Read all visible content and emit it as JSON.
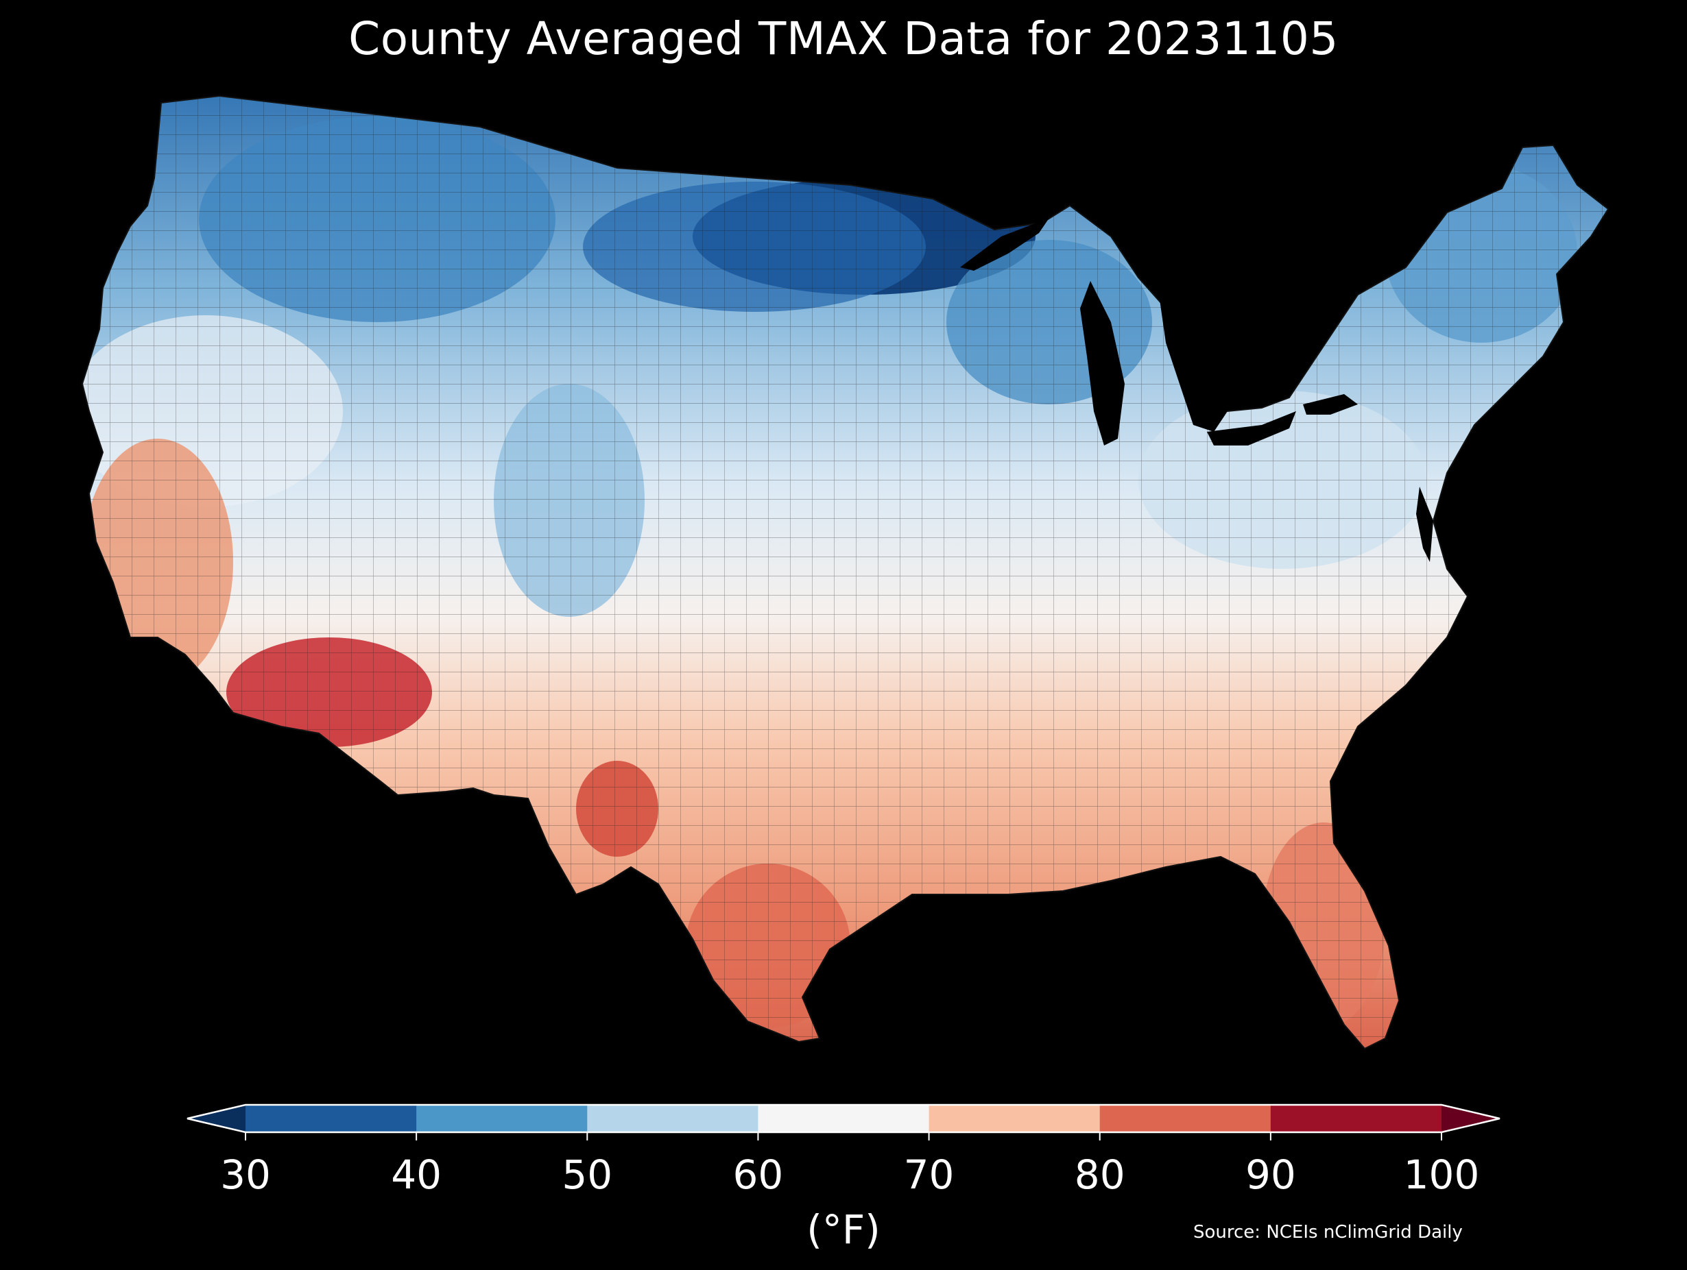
{
  "title": "County Averaged TMAX Data for 20231105",
  "colorbar": {
    "ticks": [
      "30",
      "40",
      "50",
      "60",
      "70",
      "80",
      "90",
      "100"
    ],
    "min": 30,
    "max": 100,
    "colors": [
      "#1d5a9c",
      "#4a97c8",
      "#b5d5ea",
      "#f5f5f5",
      "#f9c0a4",
      "#dd6651",
      "#9c1127"
    ],
    "under_color": "#0b2f5c",
    "over_color": "#67001f",
    "unit_label": "(°F)"
  },
  "source": "Source: NCEIs nClimGrid Daily",
  "map": {
    "region": "contiguous-united-states",
    "variable": "TMAX",
    "background": "#000000",
    "border_color": "#222222",
    "description_colors": {
      "cold": "#08306b",
      "cool": "#4292c6",
      "mild": "#deebf7",
      "neutral": "#f7f7f7",
      "warm": "#fcbba1",
      "hot": "#de6a52",
      "very_hot": "#c0292f"
    }
  }
}
